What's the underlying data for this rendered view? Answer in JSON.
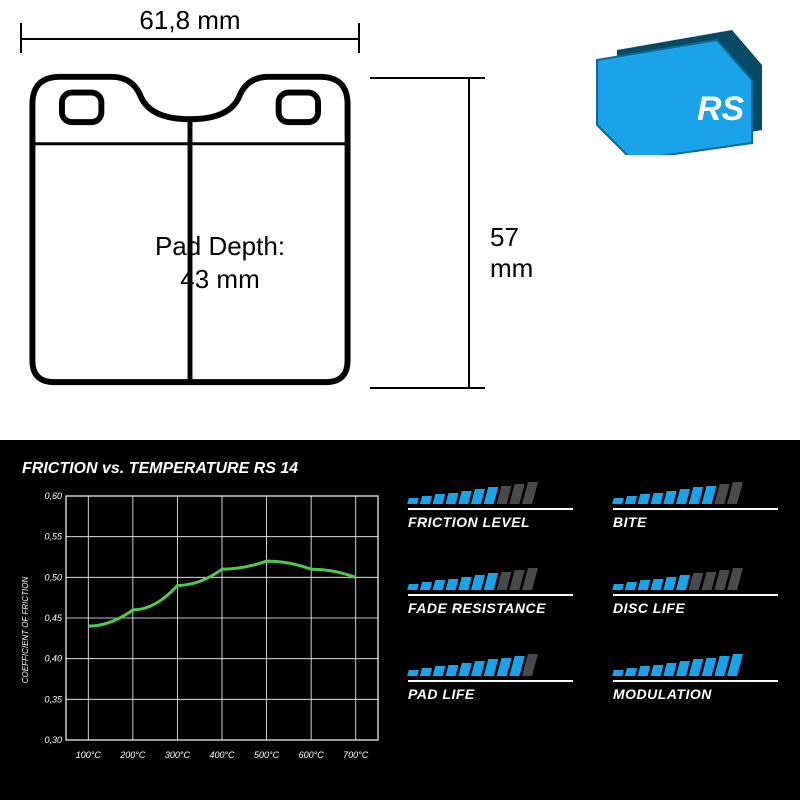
{
  "dimensions": {
    "width_label": "61,8 mm",
    "height_label": "57 mm",
    "depth_label": "Pad Depth:",
    "depth_value": "43 mm"
  },
  "product_logo_text": "RS",
  "chart": {
    "title": "FRICTION vs. TEMPERATURE RS 14",
    "y_axis_label": "COEFFICIENT OF FRICTION",
    "background": "#000000",
    "grid_color": "#ffffff",
    "line_color": "#4ec94e",
    "line_width": 3,
    "x_ticks": [
      "100°C",
      "200°C",
      "300°C",
      "400°C",
      "500°C",
      "600°C",
      "700°C"
    ],
    "x_range": [
      50,
      750
    ],
    "y_ticks": [
      "0,30",
      "0,35",
      "0,40",
      "0,45",
      "0,50",
      "0,55",
      "0,60"
    ],
    "y_range": [
      0.3,
      0.6
    ],
    "series": [
      {
        "x": 100,
        "y": 0.44
      },
      {
        "x": 200,
        "y": 0.46
      },
      {
        "x": 300,
        "y": 0.49
      },
      {
        "x": 400,
        "y": 0.51
      },
      {
        "x": 500,
        "y": 0.52
      },
      {
        "x": 600,
        "y": 0.51
      },
      {
        "x": 700,
        "y": 0.5
      }
    ]
  },
  "ratings": {
    "max_bars": 10,
    "min_height": 6,
    "max_height": 22,
    "filled_color": "#1aa3e8",
    "empty_color": "#4a4a4a",
    "items": [
      {
        "label": "FRICTION LEVEL",
        "value": 7
      },
      {
        "label": "BITE",
        "value": 8
      },
      {
        "label": "FADE RESISTANCE",
        "value": 7
      },
      {
        "label": "DISC LIFE",
        "value": 6
      },
      {
        "label": "PAD LIFE",
        "value": 9
      },
      {
        "label": "MODULATION",
        "value": 10
      }
    ]
  },
  "pad_photo": {
    "body_color": "#1aa3e8",
    "accent_color": "#074a66"
  }
}
